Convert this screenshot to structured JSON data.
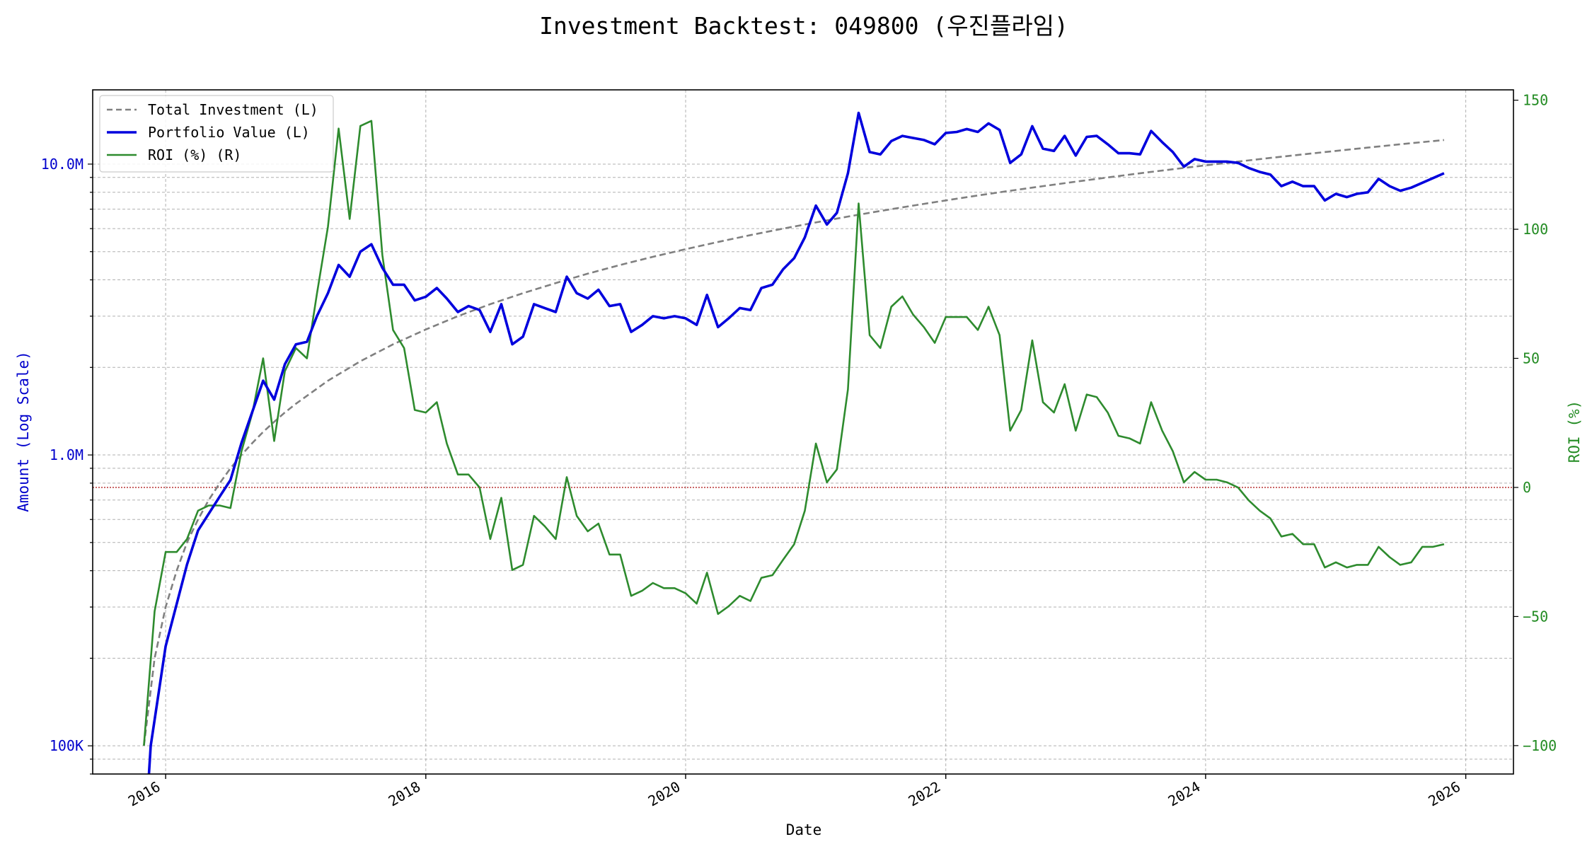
{
  "chart_data": {
    "type": "line",
    "title": "Investment Backtest: 049800 (우진플라임)",
    "xlabel": "Date",
    "ylabel_left": "Amount (Log Scale)",
    "ylabel_right": "ROI (%)",
    "left_scale": "log",
    "left_ylim": [
      80000,
      18000000
    ],
    "right_ylim": [
      -111,
      154
    ],
    "xlim": [
      "2015-06-10",
      "2026-05-15"
    ],
    "x_ticks": [
      {
        "date": "2016-01-01",
        "label": "2016"
      },
      {
        "date": "2018-01-01",
        "label": "2018"
      },
      {
        "date": "2020-01-01",
        "label": "2020"
      },
      {
        "date": "2022-01-01",
        "label": "2022"
      },
      {
        "date": "2024-01-01",
        "label": "2024"
      },
      {
        "date": "2026-01-01",
        "label": "2026"
      }
    ],
    "left_ticks": [
      {
        "value": 100000,
        "label": "100K"
      },
      {
        "value": 1000000,
        "label": "1.0M"
      },
      {
        "value": 10000000,
        "label": "10.0M"
      }
    ],
    "right_ticks": [
      {
        "value": -100,
        "label": "−100"
      },
      {
        "value": -50,
        "label": "−50"
      },
      {
        "value": 0,
        "label": "0"
      },
      {
        "value": 50,
        "label": "50"
      },
      {
        "value": 100,
        "label": "100"
      },
      {
        "value": 150,
        "label": "150"
      }
    ],
    "legend": {
      "placement": "top-left",
      "entries": [
        {
          "label": "Total Investment (L)",
          "color": "#808080",
          "style": "dashed"
        },
        {
          "label": "Portfolio Value (L)",
          "color": "#0000dd",
          "style": "solid"
        },
        {
          "label": "ROI (%) (R)",
          "color": "#2e8b2e",
          "style": "solid"
        }
      ]
    },
    "reference_line": {
      "axis": "right",
      "value": 0,
      "color": "#b22222",
      "style": "dotted"
    },
    "grid": true,
    "colors": {
      "investment": "#808080",
      "portfolio": "#0000dd",
      "roi": "#2e8b2e",
      "left_axis": "#0000cc",
      "right_axis": "#228b22"
    },
    "series": [
      {
        "name": "Total Investment (L)",
        "axis": "left",
        "x": [
          "2015-11-01",
          "2015-12-01",
          "2016-01-01",
          "2016-02-01",
          "2016-03-01",
          "2016-04-01",
          "2016-05-01",
          "2016-06-01",
          "2016-07-01",
          "2016-08-01",
          "2016-09-01",
          "2016-10-01",
          "2016-11-01",
          "2016-12-01",
          "2017-01-01",
          "2017-04-01",
          "2017-07-01",
          "2017-10-01",
          "2018-01-01",
          "2018-04-01",
          "2018-07-01",
          "2018-10-01",
          "2019-01-01",
          "2019-04-01",
          "2019-07-01",
          "2019-10-01",
          "2020-01-01",
          "2020-04-01",
          "2020-07-01",
          "2020-10-01",
          "2021-01-01",
          "2021-04-01",
          "2021-07-01",
          "2021-10-01",
          "2022-01-01",
          "2022-04-01",
          "2022-07-01",
          "2022-10-01",
          "2023-01-01",
          "2023-04-01",
          "2023-07-01",
          "2023-10-01",
          "2024-01-01",
          "2024-04-01",
          "2024-07-01",
          "2024-10-01",
          "2025-01-01",
          "2025-04-01",
          "2025-07-01",
          "2025-11-01"
        ],
        "values": [
          100000,
          200000,
          300000,
          400000,
          500000,
          600000,
          700000,
          800000,
          900000,
          1000000,
          1100000,
          1200000,
          1300000,
          1400000,
          1500000,
          1800000,
          2100000,
          2400000,
          2700000,
          3000000,
          3300000,
          3600000,
          3900000,
          4200000,
          4500000,
          4800000,
          5100000,
          5400000,
          5700000,
          6000000,
          6300000,
          6600000,
          6900000,
          7200000,
          7500000,
          7800000,
          8100000,
          8400000,
          8700000,
          9000000,
          9300000,
          9600000,
          9900000,
          10200000,
          10500000,
          10800000,
          11100000,
          11400000,
          11700000,
          12100000
        ]
      },
      {
        "name": "Portfolio Value (L)",
        "axis": "left",
        "x": [
          "2015-11-15",
          "2015-11-20",
          "2016-01-01",
          "2016-03-01",
          "2016-04-01",
          "2016-06-01",
          "2016-07-01",
          "2016-08-01",
          "2016-10-01",
          "2016-11-01",
          "2016-12-01",
          "2017-01-01",
          "2017-02-01",
          "2017-03-01",
          "2017-04-01",
          "2017-05-01",
          "2017-06-01",
          "2017-07-01",
          "2017-08-01",
          "2017-09-01",
          "2017-10-01",
          "2017-11-01",
          "2017-12-01",
          "2018-01-01",
          "2018-02-01",
          "2018-03-01",
          "2018-04-01",
          "2018-05-01",
          "2018-06-01",
          "2018-07-01",
          "2018-08-01",
          "2018-09-01",
          "2018-10-01",
          "2018-11-01",
          "2018-12-01",
          "2019-01-01",
          "2019-02-01",
          "2019-03-01",
          "2019-04-01",
          "2019-05-01",
          "2019-06-01",
          "2019-07-01",
          "2019-08-01",
          "2019-09-01",
          "2019-10-01",
          "2019-11-01",
          "2019-12-01",
          "2020-01-01",
          "2020-02-01",
          "2020-03-01",
          "2020-04-01",
          "2020-05-01",
          "2020-06-01",
          "2020-07-01",
          "2020-08-01",
          "2020-09-01",
          "2020-10-01",
          "2020-11-01",
          "2020-12-01",
          "2021-01-01",
          "2021-02-01",
          "2021-03-01",
          "2021-04-01",
          "2021-05-01",
          "2021-06-01",
          "2021-07-01",
          "2021-08-01",
          "2021-09-01",
          "2021-10-01",
          "2021-11-01",
          "2021-12-01",
          "2022-01-01",
          "2022-02-01",
          "2022-03-01",
          "2022-04-01",
          "2022-05-01",
          "2022-06-01",
          "2022-07-01",
          "2022-08-01",
          "2022-09-01",
          "2022-10-01",
          "2022-11-01",
          "2022-12-01",
          "2023-01-01",
          "2023-02-01",
          "2023-03-01",
          "2023-04-01",
          "2023-05-01",
          "2023-06-01",
          "2023-07-01",
          "2023-08-01",
          "2023-09-01",
          "2023-10-01",
          "2023-11-01",
          "2023-12-01",
          "2024-01-01",
          "2024-02-01",
          "2024-03-01",
          "2024-04-01",
          "2024-05-01",
          "2024-06-01",
          "2024-07-01",
          "2024-08-01",
          "2024-09-01",
          "2024-10-01",
          "2024-11-01",
          "2024-12-01",
          "2025-01-01",
          "2025-02-01",
          "2025-03-01",
          "2025-04-01",
          "2025-05-01",
          "2025-06-01",
          "2025-07-01",
          "2025-08-01",
          "2025-11-01"
        ],
        "values": [
          70000,
          100000,
          220000,
          420000,
          550000,
          720000,
          820000,
          1100000,
          1800000,
          1550000,
          2050000,
          2400000,
          2450000,
          3000000,
          3600000,
          4500000,
          4100000,
          5000000,
          5300000,
          4400000,
          3850000,
          3850000,
          3400000,
          3500000,
          3750000,
          3450000,
          3100000,
          3250000,
          3150000,
          2650000,
          3300000,
          2400000,
          2550000,
          3300000,
          3200000,
          3100000,
          4100000,
          3600000,
          3450000,
          3700000,
          3250000,
          3300000,
          2650000,
          2800000,
          3000000,
          2950000,
          3000000,
          2950000,
          2800000,
          3550000,
          2750000,
          2950000,
          3200000,
          3150000,
          3750000,
          3850000,
          4350000,
          4750000,
          5600000,
          7200000,
          6200000,
          6800000,
          9300000,
          15000000,
          11000000,
          10800000,
          12000000,
          12500000,
          12300000,
          12100000,
          11700000,
          12800000,
          12900000,
          13200000,
          12900000,
          13800000,
          13100000,
          10100000,
          10800000,
          13500000,
          11300000,
          11100000,
          12500000,
          10700000,
          12400000,
          12500000,
          11700000,
          10900000,
          10900000,
          10800000,
          13000000,
          11900000,
          11000000,
          9800000,
          10400000,
          10200000,
          10200000,
          10200000,
          10100000,
          9700000,
          9400000,
          9200000,
          8400000,
          8700000,
          8400000,
          8400000,
          7500000,
          7900000,
          7700000,
          7900000,
          8000000,
          8900000,
          8400000,
          8100000,
          8300000,
          9300000
        ]
      },
      {
        "name": "ROI (%) (R)",
        "axis": "right",
        "x": [
          "2015-11-01",
          "2015-12-01",
          "2016-01-01",
          "2016-02-01",
          "2016-03-01",
          "2016-04-01",
          "2016-05-01",
          "2016-06-01",
          "2016-07-01",
          "2016-08-01",
          "2016-09-01",
          "2016-10-01",
          "2016-11-01",
          "2016-12-01",
          "2017-01-01",
          "2017-02-01",
          "2017-03-01",
          "2017-04-01",
          "2017-05-01",
          "2017-06-01",
          "2017-07-01",
          "2017-08-01",
          "2017-09-01",
          "2017-10-01",
          "2017-11-01",
          "2017-12-01",
          "2018-01-01",
          "2018-02-01",
          "2018-03-01",
          "2018-04-01",
          "2018-05-01",
          "2018-06-01",
          "2018-07-01",
          "2018-08-01",
          "2018-09-01",
          "2018-10-01",
          "2018-11-01",
          "2018-12-01",
          "2019-01-01",
          "2019-02-01",
          "2019-03-01",
          "2019-04-01",
          "2019-05-01",
          "2019-06-01",
          "2019-07-01",
          "2019-08-01",
          "2019-09-01",
          "2019-10-01",
          "2019-11-01",
          "2019-12-01",
          "2020-01-01",
          "2020-02-01",
          "2020-03-01",
          "2020-04-01",
          "2020-05-01",
          "2020-06-01",
          "2020-07-01",
          "2020-08-01",
          "2020-09-01",
          "2020-10-01",
          "2020-11-01",
          "2020-12-01",
          "2021-01-01",
          "2021-02-01",
          "2021-03-01",
          "2021-04-01",
          "2021-05-01",
          "2021-06-01",
          "2021-07-01",
          "2021-08-01",
          "2021-09-01",
          "2021-10-01",
          "2021-11-01",
          "2021-12-01",
          "2022-01-01",
          "2022-02-01",
          "2022-03-01",
          "2022-04-01",
          "2022-05-01",
          "2022-06-01",
          "2022-07-01",
          "2022-08-01",
          "2022-09-01",
          "2022-10-01",
          "2022-11-01",
          "2022-12-01",
          "2023-01-01",
          "2023-02-01",
          "2023-03-01",
          "2023-04-01",
          "2023-05-01",
          "2023-06-01",
          "2023-07-01",
          "2023-08-01",
          "2023-09-01",
          "2023-10-01",
          "2023-11-01",
          "2023-12-01",
          "2024-01-01",
          "2024-02-01",
          "2024-03-01",
          "2024-04-01",
          "2024-05-01",
          "2024-06-01",
          "2024-07-01",
          "2024-08-01",
          "2024-09-01",
          "2024-10-01",
          "2024-11-01",
          "2024-12-01",
          "2025-01-01",
          "2025-02-01",
          "2025-03-01",
          "2025-04-01",
          "2025-05-01",
          "2025-06-01",
          "2025-07-01",
          "2025-08-01",
          "2025-09-01",
          "2025-10-01",
          "2025-11-01"
        ],
        "values": [
          -100,
          -48,
          -25,
          -25,
          -20,
          -9,
          -7,
          -7,
          -8,
          14,
          29,
          50,
          18,
          45,
          54,
          50,
          75,
          101,
          139,
          104,
          140,
          142,
          90,
          61,
          54,
          30,
          29,
          33,
          17,
          5,
          5,
          0,
          -20,
          -4,
          -32,
          -30,
          -11,
          -15,
          -20,
          4,
          -11,
          -17,
          -14,
          -26,
          -26,
          -42,
          -40,
          -37,
          -39,
          -39,
          -41,
          -45,
          -33,
          -49,
          -46,
          -42,
          -44,
          -35,
          -34,
          -28,
          -22,
          -9,
          17,
          2,
          7,
          38,
          110,
          59,
          54,
          70,
          74,
          67,
          62,
          56,
          66,
          66,
          66,
          61,
          70,
          59,
          22,
          30,
          57,
          33,
          29,
          40,
          22,
          36,
          35,
          29,
          20,
          19,
          17,
          33,
          22,
          14,
          2,
          6,
          3,
          3,
          2,
          0,
          -5,
          -9,
          -12,
          -19,
          -18,
          -22,
          -22,
          -31,
          -29,
          -31,
          -30,
          -30,
          -23,
          -27,
          -30,
          -29,
          -23,
          -23,
          -22
        ]
      }
    ]
  }
}
